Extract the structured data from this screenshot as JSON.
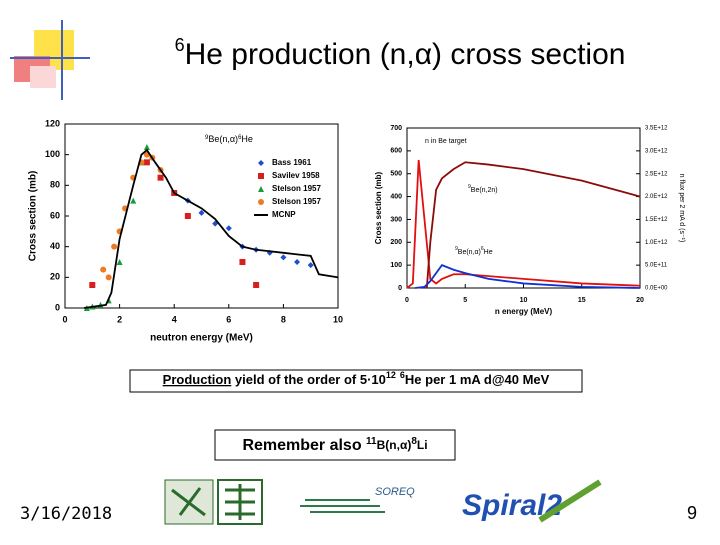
{
  "slide": {
    "title_sup": "6",
    "title": "He production (n,α) cross section",
    "yield_box": {
      "a": "Production",
      "b": " yield of the order of 5·10",
      "c": "12",
      "d": "6",
      "e": "He per 1 mA d@40 MeV"
    },
    "remember_box": {
      "a": "Remember also ",
      "b": "11",
      "c": "B(n,α)",
      "d": "8",
      "e": "Li"
    },
    "date": "3/16/2018",
    "page_number": "9",
    "logo_soreq": "SOREQ",
    "logo_spiral": "Spiral2"
  },
  "chart_data": [
    {
      "type": "scatter",
      "xlabel": "neutron energy (MeV)",
      "ylabel": "Cross section (mb)",
      "annotation": {
        "sup1": "9",
        "a": "Be(n,α)",
        "sup2": "6",
        "b": "He"
      },
      "xlim": [
        0,
        10
      ],
      "xticks": [
        0,
        2,
        4,
        6,
        8,
        10
      ],
      "ylim": [
        0,
        120
      ],
      "yticks": [
        0,
        20,
        40,
        60,
        80,
        100,
        120
      ],
      "legend": "upper right",
      "series": [
        {
          "name": "Bass 1961",
          "color": "#1f4fd0",
          "marker": "diamond",
          "x": [
            4.5,
            5,
            5.5,
            6,
            6.5,
            7,
            7.5,
            8,
            8.5,
            9
          ],
          "values": [
            70,
            62,
            55,
            52,
            40,
            38,
            36,
            33,
            30,
            28
          ]
        },
        {
          "name": "Savilev 1958",
          "color": "#d62020",
          "marker": "square",
          "x": [
            1,
            3,
            3.5,
            4,
            4.5,
            6.5,
            7
          ],
          "values": [
            15,
            95,
            85,
            75,
            60,
            30,
            15
          ]
        },
        {
          "name": "Stelson 1957",
          "color": "#1a9a3a",
          "marker": "triangle",
          "x": [
            0.8,
            1,
            1.3,
            1.6,
            2,
            2.5,
            2.8,
            3
          ],
          "values": [
            0,
            1,
            2,
            5,
            30,
            70,
            95,
            105
          ]
        },
        {
          "name": "Stelson 1957",
          "color": "#f07a20",
          "marker": "circle",
          "x": [
            1.4,
            1.6,
            1.8,
            2,
            2.2,
            2.5,
            2.8,
            3,
            3.2,
            3.5
          ],
          "values": [
            25,
            20,
            40,
            50,
            65,
            85,
            95,
            100,
            98,
            90
          ]
        },
        {
          "name": "MCNP",
          "color": "#000000",
          "marker": "line",
          "x": [
            0.7,
            1.5,
            1.7,
            2.0,
            2.5,
            2.8,
            3.0,
            3.3,
            3.7,
            4.0,
            4.5,
            5.0,
            5.5,
            6.0,
            6.5,
            7.0,
            7.5,
            8.0,
            8.5,
            9.0,
            9.3,
            10
          ],
          "values": [
            0,
            2,
            10,
            45,
            80,
            100,
            103,
            95,
            85,
            75,
            70,
            65,
            58,
            47,
            40,
            38,
            37,
            36,
            35,
            34,
            22,
            20
          ]
        }
      ]
    },
    {
      "type": "line",
      "xlabel": "n energy (MeV)",
      "ylabel": "Cross section (mb)",
      "y2label": "n flux per 2 mA d (s⁻¹)",
      "annotations": [
        {
          "text": "n in Be target"
        },
        {
          "sup1": "9",
          "text": "Be(n,2n)"
        },
        {
          "sup1": "9",
          "text": "Be(n,α)",
          "sup2": "6",
          "text2": "He"
        }
      ],
      "xlim": [
        0,
        20
      ],
      "xticks": [
        0,
        5,
        10,
        15,
        20
      ],
      "ylim": [
        0,
        700
      ],
      "yticks": [
        0,
        100,
        200,
        300,
        400,
        500,
        600,
        700
      ],
      "y2lim": [
        0,
        3500000000000.0
      ],
      "y2ticks": [
        {
          "value": 0,
          "label": "0.0E+00"
        },
        {
          "value": 500000000000.0,
          "label": "5.0E+11"
        },
        {
          "value": 1000000000000.0,
          "label": "1.0E+12"
        },
        {
          "value": 1500000000000.0,
          "label": "1.5E+12"
        },
        {
          "value": 2000000000000.0,
          "label": "2.0E+12"
        },
        {
          "value": 2500000000000.0,
          "label": "2.5E+12"
        },
        {
          "value": 3000000000000.0,
          "label": "3.0E+12"
        },
        {
          "value": 3500000000000.0,
          "label": "3.5E+12"
        }
      ],
      "series": [
        {
          "color": "#e01010",
          "axis": "y2",
          "x": [
            0,
            0.5,
            1,
            1.5,
            2,
            2.5,
            3,
            4,
            5,
            10,
            15,
            20
          ],
          "values": [
            0,
            100000000000.0,
            2800000000000.0,
            1500000000000.0,
            200000000000.0,
            100000000000.0,
            200000000000.0,
            300000000000.0,
            300000000000.0,
            200000000000.0,
            100000000000.0,
            50000000000.0
          ]
        },
        {
          "color": "#8b0a0a",
          "x": [
            1.7,
            2,
            2.5,
            3,
            4,
            5,
            7,
            10,
            15,
            20
          ],
          "values": [
            0,
            200,
            430,
            480,
            520,
            550,
            540,
            520,
            470,
            400
          ]
        },
        {
          "color": "#1030d0",
          "x": [
            0.7,
            1.5,
            2,
            3,
            4,
            5,
            7,
            10,
            15,
            20
          ],
          "values": [
            0,
            5,
            30,
            100,
            80,
            65,
            40,
            20,
            5,
            0
          ]
        }
      ]
    }
  ]
}
